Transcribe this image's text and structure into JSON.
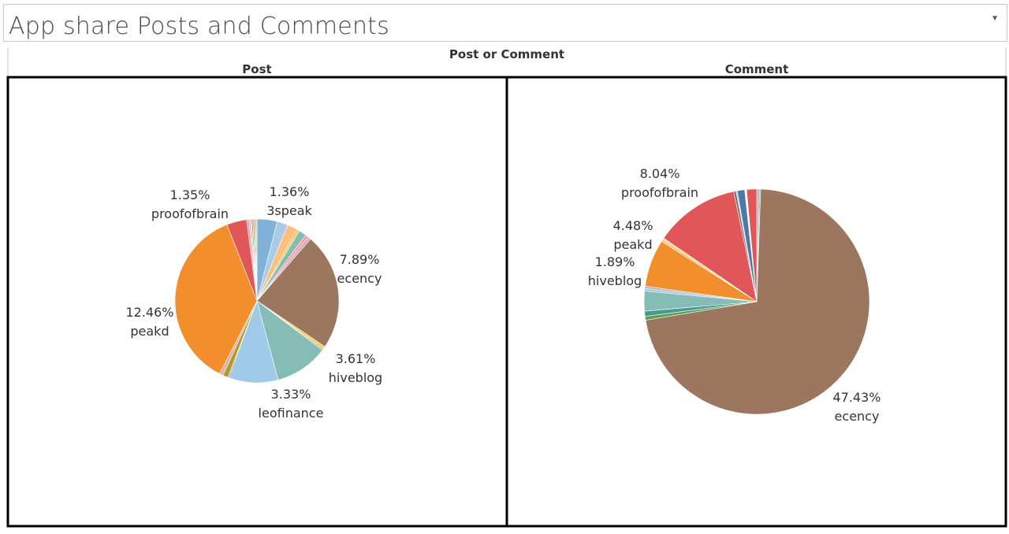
{
  "title": "App share Posts and Comments",
  "dropdown_icon": "chevron-down-icon",
  "column_header": "Post or Comment",
  "chart_data": [
    {
      "type": "pie",
      "panel_label": "Post",
      "slices": [
        {
          "value": 1.36,
          "color": "#7fb2d6"
        },
        {
          "value": 0.73,
          "color": "#a8cbe6"
        },
        {
          "value": 0.67,
          "color": "#ffbe7d"
        },
        {
          "value": 0.2,
          "color": "#f1ce63"
        },
        {
          "value": 0.5,
          "color": "#86bcb6"
        },
        {
          "value": 0.22,
          "color": "#ff9d9a"
        },
        {
          "value": 0.2,
          "color": "#d4a6c8"
        },
        {
          "value": 7.89,
          "color": "#9d7660"
        },
        {
          "value": 0.2,
          "color": "#f1ce63"
        },
        {
          "value": 0.08,
          "color": "#b6992d"
        },
        {
          "value": 3.61,
          "color": "#86bcb6"
        },
        {
          "value": 3.33,
          "color": "#a0cbe8"
        },
        {
          "value": 0.07,
          "color": "#79706e"
        },
        {
          "value": 0.35,
          "color": "#b6992d"
        },
        {
          "value": 0.25,
          "color": "#d7b5a6"
        },
        {
          "value": 12.46,
          "color": "#f28e2b"
        },
        {
          "value": 1.35,
          "color": "#e15759"
        },
        {
          "value": 0.15,
          "color": "#bab0ac"
        },
        {
          "value": 0.1,
          "color": "#ff9d9a"
        },
        {
          "value": 0.08,
          "color": "#a0cbe8"
        },
        {
          "value": 0.08,
          "color": "#e15759"
        },
        {
          "value": 0.1,
          "color": "#8cd17d"
        },
        {
          "value": 0.08,
          "color": "#b6992d"
        },
        {
          "value": 0.1,
          "color": "#f1ce63"
        }
      ],
      "labels": [
        {
          "value": "1.35%",
          "name": "proofofbrain"
        },
        {
          "value": "1.36%",
          "name": "3speak"
        },
        {
          "value": "7.89%",
          "name": "ecency"
        },
        {
          "value": "12.46%",
          "name": "peakd"
        },
        {
          "value": "3.61%",
          "name": "hiveblog"
        },
        {
          "value": "3.33%",
          "name": "leofinance"
        }
      ]
    },
    {
      "type": "pie",
      "panel_label": "Comment",
      "slices": [
        {
          "value": 0.25,
          "color": "#bab0ac"
        },
        {
          "value": 0.12,
          "color": "#76b7b2"
        },
        {
          "value": 47.43,
          "color": "#9d7660"
        },
        {
          "value": 0.35,
          "color": "#59a14f"
        },
        {
          "value": 0.5,
          "color": "#499894"
        },
        {
          "value": 1.89,
          "color": "#86bcb6"
        },
        {
          "value": 0.25,
          "color": "#a0cbe8"
        },
        {
          "value": 0.2,
          "color": "#bab0ac"
        },
        {
          "value": 4.48,
          "color": "#f28e2b"
        },
        {
          "value": 0.22,
          "color": "#ffbe7d"
        },
        {
          "value": 0.15,
          "color": "#f1ce63"
        },
        {
          "value": 8.04,
          "color": "#e15759"
        },
        {
          "value": 0.22,
          "color": "#79706e"
        },
        {
          "value": 0.12,
          "color": "#a0cbe8"
        },
        {
          "value": 0.7,
          "color": "#4e79a7"
        },
        {
          "value": 0.18,
          "color": "#ffffff"
        },
        {
          "value": 0.95,
          "color": "#e15759"
        }
      ],
      "labels": [
        {
          "value": "8.04%",
          "name": "proofofbrain"
        },
        {
          "value": "4.48%",
          "name": "peakd"
        },
        {
          "value": "1.89%",
          "name": "hiveblog"
        },
        {
          "value": "47.43%",
          "name": "ecency"
        }
      ]
    }
  ]
}
